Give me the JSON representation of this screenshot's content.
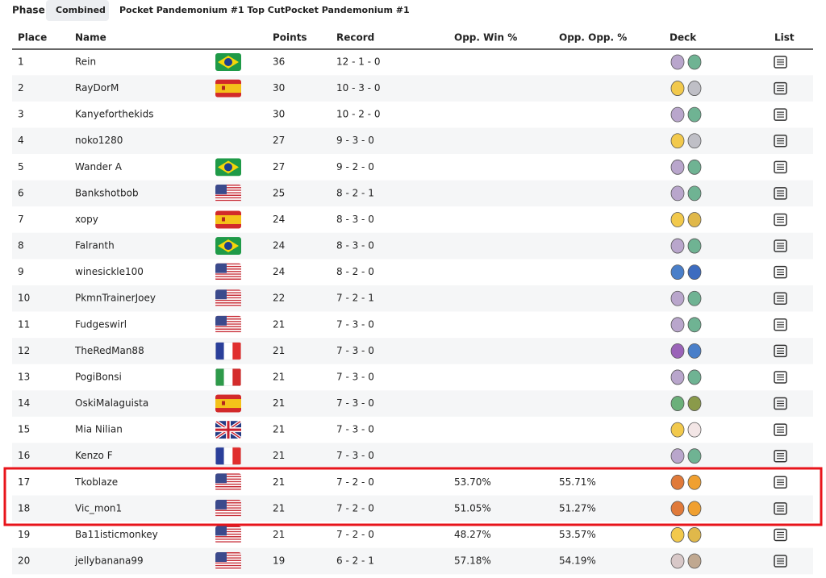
{
  "tabs": {
    "label": "Phase",
    "items": [
      "Combined",
      "Pocket Pandemonium #1 Top Cut",
      "Pocket Pandemonium #1"
    ]
  },
  "table": {
    "headers": [
      "Place",
      "Name",
      "Points",
      "Record",
      "Opp. Win %",
      "Opp. Opp. %",
      "Deck",
      "List"
    ],
    "rows": [
      [
        1,
        "Rein",
        36,
        "12 - 1 - 0",
        null,
        null
      ],
      [
        2,
        "RayDorM",
        30,
        "10 - 3 - 0",
        null,
        null
      ],
      [
        3,
        "Kanyeforthekids",
        30,
        "10 - 2 - 0",
        null,
        null
      ],
      [
        4,
        "noko1280",
        27,
        "9 - 3 - 0",
        null,
        null
      ],
      [
        5,
        "Wander A",
        27,
        "9 - 2 - 0",
        null,
        null
      ],
      [
        6,
        "Bankshotbob",
        25,
        "8 - 2 - 1",
        null,
        null
      ],
      [
        7,
        "xopy",
        24,
        "8 - 3 - 0",
        null,
        null
      ],
      [
        8,
        "Falranth",
        24,
        "8 - 3 - 0",
        null,
        null
      ],
      [
        9,
        "winesickle100",
        24,
        "8 - 2 - 0",
        null,
        null
      ],
      [
        10,
        "PkmnTrainerJoey",
        22,
        "7 - 2 - 1",
        null,
        null
      ],
      [
        11,
        "Fudgeswirl",
        21,
        "7 - 3 - 0",
        null,
        null
      ],
      [
        12,
        "TheRedMan88",
        21,
        "7 - 3 - 0",
        null,
        null
      ],
      [
        13,
        "PogiBonsi",
        21,
        "7 - 3 - 0",
        null,
        null
      ],
      [
        14,
        "OskiMalaguista",
        21,
        "7 - 3 - 0",
        null,
        null
      ],
      [
        15,
        "Mia Nilian",
        21,
        "7 - 3 - 0",
        null,
        null
      ],
      [
        16,
        "Kenzo F",
        21,
        "7 - 3 - 0",
        null,
        null
      ],
      [
        17,
        "Tkoblaze",
        21,
        "7 - 2 - 0",
        "53.70%",
        "55.71%"
      ],
      [
        18,
        "Vic_mon1",
        21,
        "7 - 2 - 0",
        "51.05%",
        "51.27%"
      ],
      [
        19,
        "Ba11isticmonkey",
        21,
        "7 - 2 - 0",
        "48.27%",
        "53.57%"
      ],
      [
        20,
        "jellybanana99",
        19,
        "6 - 2 - 1",
        "57.18%",
        "54.19%"
      ]
    ]
  }
}
